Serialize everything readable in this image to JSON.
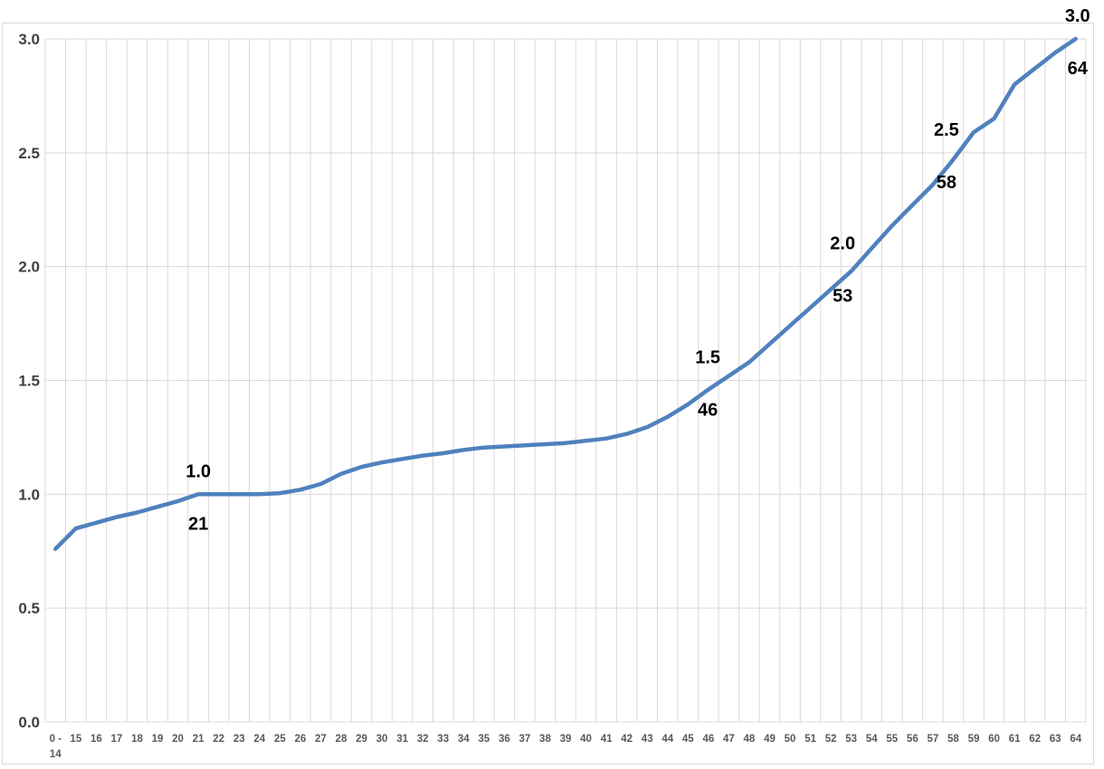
{
  "chart_data": {
    "type": "line",
    "title": "",
    "xlabel": "",
    "ylabel": "",
    "categories": [
      "0 -\n14",
      "15",
      "16",
      "17",
      "18",
      "19",
      "20",
      "21",
      "22",
      "23",
      "24",
      "25",
      "26",
      "27",
      "28",
      "29",
      "30",
      "31",
      "32",
      "33",
      "34",
      "35",
      "36",
      "37",
      "38",
      "39",
      "40",
      "41",
      "42",
      "43",
      "44",
      "45",
      "46",
      "47",
      "48",
      "49",
      "50",
      "51",
      "52",
      "53",
      "54",
      "55",
      "56",
      "57",
      "58",
      "59",
      "60",
      "61",
      "62",
      "63",
      "64"
    ],
    "values": [
      0.76,
      0.85,
      0.875,
      0.9,
      0.92,
      0.945,
      0.97,
      1.0,
      1.0,
      1.0,
      1.0,
      1.005,
      1.02,
      1.045,
      1.09,
      1.12,
      1.14,
      1.155,
      1.17,
      1.18,
      1.195,
      1.205,
      1.21,
      1.215,
      1.22,
      1.225,
      1.235,
      1.245,
      1.265,
      1.295,
      1.34,
      1.395,
      1.46,
      1.52,
      1.58,
      1.66,
      1.74,
      1.82,
      1.9,
      1.98,
      2.08,
      2.18,
      2.27,
      2.36,
      2.47,
      2.59,
      2.65,
      2.8,
      2.87,
      2.94,
      3.0
    ],
    "ylim": [
      0,
      3
    ],
    "ytick_step": 0.5,
    "ytick_labels": [
      "0.0",
      "0.5",
      "1.0",
      "1.5",
      "2.0",
      "2.5",
      "3.0"
    ],
    "grid": true,
    "legend": "none",
    "annotations": [
      {
        "milestone": "1.0",
        "age": "21",
        "x_index": 7.0,
        "value": 1.0,
        "dx": 0
      },
      {
        "milestone": "1.5",
        "age": "46",
        "x_index": 32.9,
        "value": 1.5,
        "dx": -21
      },
      {
        "milestone": "2.0",
        "age": "53",
        "x_index": 39.2,
        "value": 2.0,
        "dx": -14
      },
      {
        "milestone": "2.5",
        "age": "58",
        "x_index": 43.8,
        "value": 2.5,
        "dx": -3
      },
      {
        "milestone": "3.0",
        "age": "64",
        "x_index": 50.0,
        "value": 3.0,
        "dx": 2
      }
    ],
    "colors": {
      "line": "#4f81bd",
      "grid": "#d9d9d9",
      "chart_border": "#d9d9d9",
      "x_tick_text": "#595959",
      "y_tick_text": "#404040",
      "annotation_text": "#000000",
      "background": "#ffffff"
    }
  }
}
